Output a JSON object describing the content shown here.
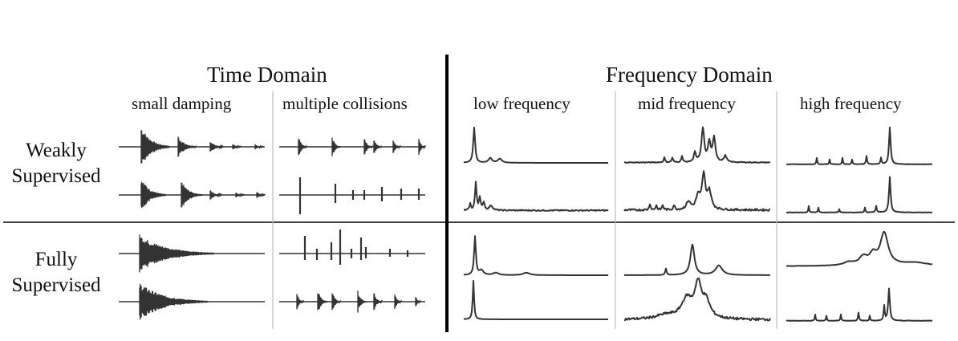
{
  "headers": {
    "time_domain": "Time Domain",
    "frequency_domain": "Frequency Domain"
  },
  "columns": {
    "small_damping": "small damping",
    "multiple_collisions": "multiple collisions",
    "low_frequency": "low frequency",
    "mid_frequency": "mid frequency",
    "high_frequency": "high frequency"
  },
  "rows": {
    "weakly": [
      "Weakly",
      "Supervised"
    ],
    "fully": [
      "Fully",
      "Supervised"
    ]
  },
  "colors": {
    "trace": "#333333",
    "divider_thin": "#bbbbbb",
    "divider_thick": "#000000"
  }
}
